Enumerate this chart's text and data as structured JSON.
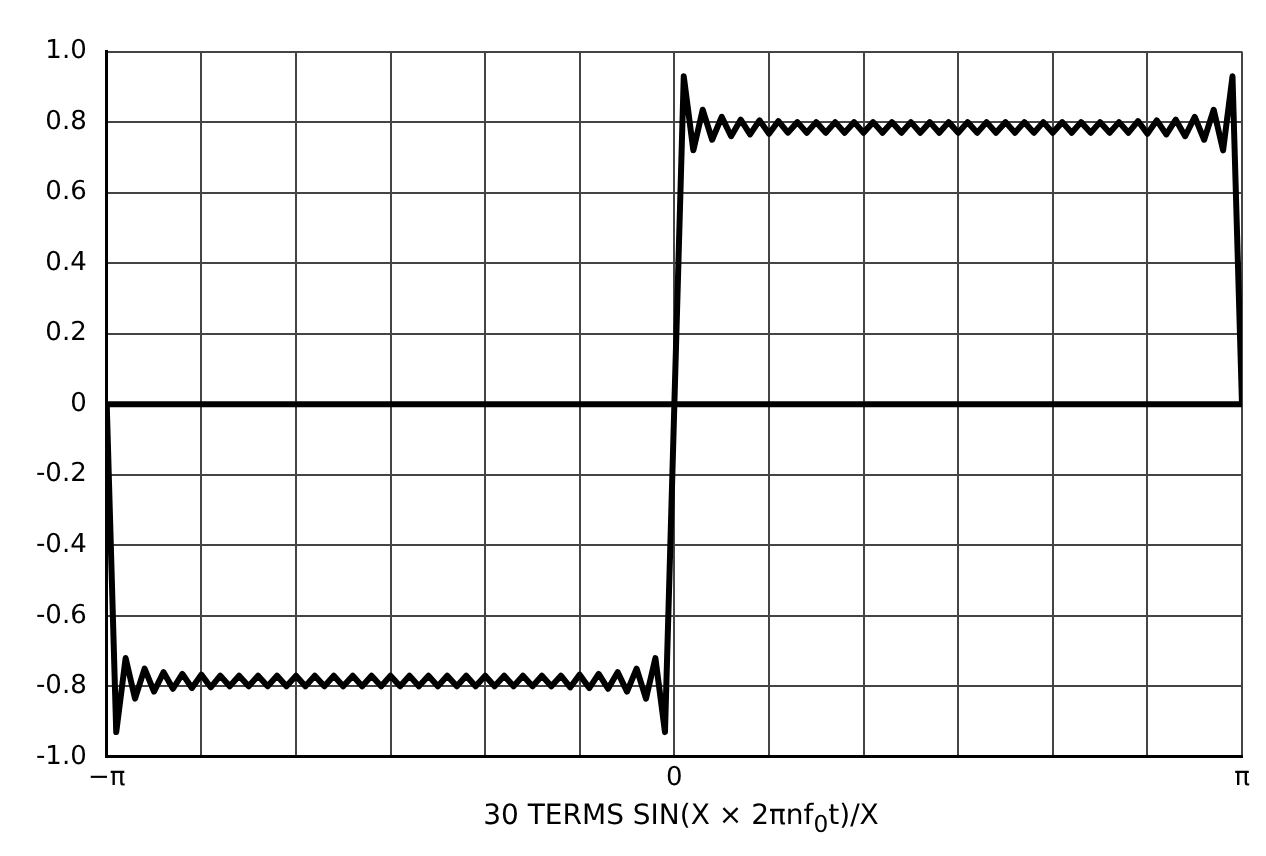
{
  "chart_data": {
    "type": "line",
    "xlabel": "30 TERMS SIN(X × 2πnf$_{0}$t)/X",
    "xlim": [
      -3.1416,
      3.1416
    ],
    "xticks": [
      {
        "value": -3.1416,
        "label": "−π"
      },
      {
        "value": -2.618,
        "label": null
      },
      {
        "value": -2.0944,
        "label": null
      },
      {
        "value": -1.5708,
        "label": null
      },
      {
        "value": -1.0472,
        "label": null
      },
      {
        "value": -0.5236,
        "label": null
      },
      {
        "value": 0,
        "label": "0"
      },
      {
        "value": 0.5236,
        "label": null
      },
      {
        "value": 1.0472,
        "label": null
      },
      {
        "value": 1.5708,
        "label": null
      },
      {
        "value": 2.0944,
        "label": null
      },
      {
        "value": 2.618,
        "label": null
      },
      {
        "value": 3.1416,
        "label": "π"
      }
    ],
    "ylim": [
      -1.0,
      1.0
    ],
    "yticks": [
      {
        "value": -1.0,
        "label": "-1.0"
      },
      {
        "value": -0.8,
        "label": "-0.8"
      },
      {
        "value": -0.6,
        "label": "-0.6"
      },
      {
        "value": -0.4,
        "label": "-0.4"
      },
      {
        "value": -0.2,
        "label": "-0.2"
      },
      0,
      {
        "value": 0.2,
        "label": "0.2"
      },
      {
        "value": 0.4,
        "label": "0.4"
      },
      {
        "value": 0.6,
        "label": "0.6"
      },
      {
        "value": 0.8,
        "label": "0.8"
      },
      {
        "value": 1.0,
        "label": "1.0"
      }
    ],
    "grid": true,
    "legend": false,
    "marker": "none",
    "line_style": "solid",
    "ref_lines": [
      {
        "axis": "y",
        "value": 0,
        "color": "#000000"
      }
    ],
    "series": [
      {
        "color": "#000000",
        "x": [
          -3.1416,
          -3.089,
          -3.037,
          -2.985,
          -2.932,
          -2.88,
          -2.827,
          -2.775,
          -2.723,
          -2.67,
          -2.618,
          -2.566,
          -2.513,
          -2.461,
          -2.409,
          -2.356,
          -2.304,
          -2.251,
          -2.199,
          -2.147,
          -2.094,
          -2.042,
          -1.99,
          -1.937,
          -1.885,
          -1.833,
          -1.78,
          -1.728,
          -1.676,
          -1.623,
          -1.571,
          -1.518,
          -1.466,
          -1.414,
          -1.361,
          -1.309,
          -1.257,
          -1.204,
          -1.152,
          -1.1,
          -1.047,
          -0.995,
          -0.942,
          -0.89,
          -0.838,
          -0.785,
          -0.733,
          -0.681,
          -0.628,
          -0.576,
          -0.524,
          -0.471,
          -0.419,
          -0.367,
          -0.314,
          -0.262,
          -0.209,
          -0.157,
          -0.105,
          -0.052,
          0,
          0.052,
          0.105,
          0.157,
          0.209,
          0.262,
          0.314,
          0.367,
          0.419,
          0.471,
          0.524,
          0.576,
          0.628,
          0.681,
          0.733,
          0.785,
          0.838,
          0.89,
          0.942,
          0.995,
          1.047,
          1.1,
          1.152,
          1.204,
          1.257,
          1.309,
          1.361,
          1.414,
          1.466,
          1.518,
          1.571,
          1.623,
          1.676,
          1.728,
          1.78,
          1.833,
          1.885,
          1.937,
          1.99,
          2.042,
          2.094,
          2.147,
          2.199,
          2.251,
          2.304,
          2.356,
          2.409,
          2.461,
          2.513,
          2.566,
          2.618,
          2.67,
          2.723,
          2.775,
          2.827,
          2.88,
          2.932,
          2.985,
          3.037,
          3.089,
          3.1416
        ],
        "values": [
          0,
          -0.93,
          -0.72,
          -0.835,
          -0.75,
          -0.815,
          -0.76,
          -0.807,
          -0.765,
          -0.805,
          -0.767,
          -0.803,
          -0.77,
          -0.8,
          -0.77,
          -0.8,
          -0.77,
          -0.8,
          -0.77,
          -0.8,
          -0.77,
          -0.8,
          -0.77,
          -0.8,
          -0.77,
          -0.8,
          -0.77,
          -0.8,
          -0.77,
          -0.8,
          -0.77,
          -0.8,
          -0.77,
          -0.8,
          -0.77,
          -0.8,
          -0.77,
          -0.8,
          -0.77,
          -0.8,
          -0.77,
          -0.8,
          -0.77,
          -0.8,
          -0.77,
          -0.8,
          -0.77,
          -0.8,
          -0.77,
          -0.803,
          -0.767,
          -0.805,
          -0.765,
          -0.807,
          -0.76,
          -0.815,
          -0.75,
          -0.835,
          -0.72,
          -0.93,
          0,
          0.93,
          0.72,
          0.835,
          0.75,
          0.815,
          0.76,
          0.807,
          0.765,
          0.805,
          0.767,
          0.803,
          0.77,
          0.8,
          0.77,
          0.8,
          0.77,
          0.8,
          0.77,
          0.8,
          0.77,
          0.8,
          0.77,
          0.8,
          0.77,
          0.8,
          0.77,
          0.8,
          0.77,
          0.8,
          0.77,
          0.8,
          0.77,
          0.8,
          0.77,
          0.8,
          0.77,
          0.8,
          0.77,
          0.8,
          0.77,
          0.8,
          0.77,
          0.8,
          0.77,
          0.8,
          0.77,
          0.8,
          0.77,
          0.803,
          0.767,
          0.805,
          0.765,
          0.807,
          0.76,
          0.815,
          0.75,
          0.835,
          0.72,
          0.93,
          0
        ]
      }
    ]
  }
}
